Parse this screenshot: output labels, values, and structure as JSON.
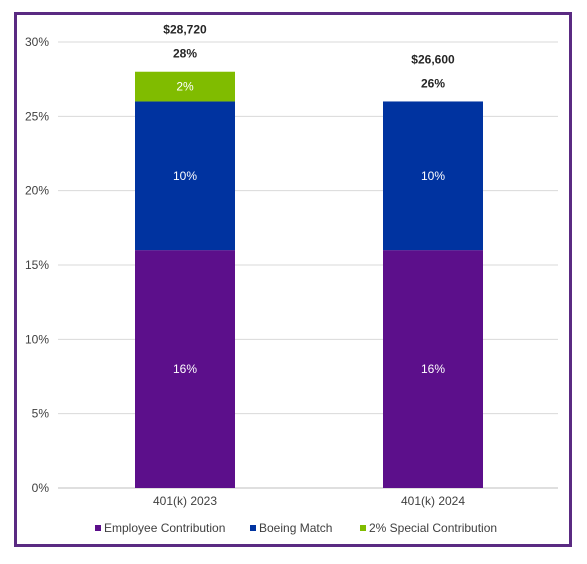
{
  "chart_data": {
    "type": "bar",
    "stacked": true,
    "categories": [
      "401(k) 2023",
      "401(k) 2024"
    ],
    "series": [
      {
        "name": "Employee Contribution",
        "values": [
          16,
          16
        ],
        "labels": [
          "16%",
          "16%"
        ],
        "color": "#5c0f8b"
      },
      {
        "name": "Boeing Match",
        "values": [
          10,
          10
        ],
        "labels": [
          "10%",
          "10%"
        ],
        "color": "#0033a0"
      },
      {
        "name": "2% Special Contribution",
        "values": [
          2,
          0
        ],
        "labels": [
          "2%",
          ""
        ],
        "color": "#80bc00"
      }
    ],
    "totals": [
      {
        "percent": "28%",
        "amount": "$28,720"
      },
      {
        "percent": "26%",
        "amount": "$26,600"
      }
    ],
    "ylim": [
      0,
      30
    ],
    "yticks": [
      0,
      5,
      10,
      15,
      20,
      25,
      30
    ],
    "ytick_labels": [
      "0%",
      "5%",
      "10%",
      "15%",
      "20%",
      "25%",
      "30%"
    ],
    "grid": true,
    "legend_position": "bottom",
    "title": "",
    "xlabel": "",
    "ylabel": ""
  },
  "colors": {
    "frame_border": "#5a2a82",
    "gridline": "#d9d9d9"
  }
}
